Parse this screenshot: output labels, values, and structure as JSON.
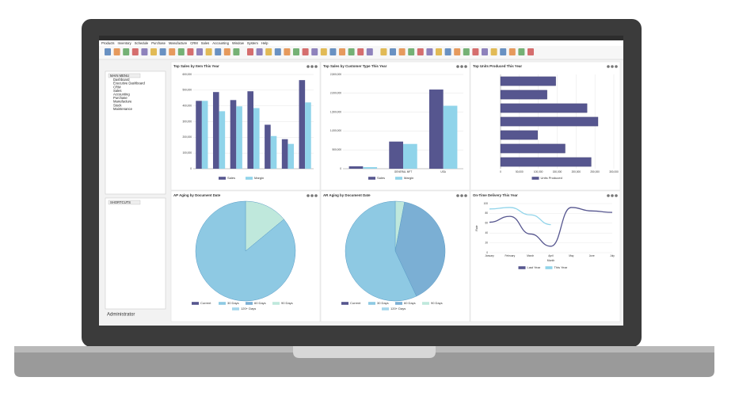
{
  "menu_bar": [
    "Products",
    "Inventory",
    "Schedule",
    "Purchase",
    "Manufacture",
    "CRM",
    "Sales",
    "Accounting",
    "Window",
    "System",
    "Help"
  ],
  "sidebar": {
    "main_menu_title": "MAIN MENU",
    "main_menu": [
      "Dashboard",
      "Executive Dashboard",
      "CRM",
      "Sales",
      "Accounting",
      "Purchase",
      "Manufacture",
      "Stock",
      "Maintenance"
    ],
    "shortcuts_title": "SHORTCUTS",
    "user": "Administrator"
  },
  "chart_data": [
    {
      "type": "bar",
      "title": "Top Sales by Item This Year",
      "categories": [
        null,
        null,
        null,
        null,
        null,
        null,
        null
      ],
      "series": [
        {
          "name": "Sales",
          "color": "#56568f",
          "values": [
            432000,
            488000,
            437000,
            493000,
            280000,
            188000,
            564000
          ]
        },
        {
          "name": "Margin",
          "color": "#90d4ea",
          "values": [
            432000,
            366000,
            397000,
            386000,
            208000,
            158000,
            422000
          ]
        }
      ],
      "ylim": [
        0,
        600000
      ],
      "yticks": [
        0,
        {
          "value": 100000,
          "label": "100,000"
        },
        {
          "value": 200000,
          "label": "200,000"
        },
        {
          "value": 300000,
          "label": "300,000"
        },
        {
          "value": 400000,
          "label": "400,000"
        },
        {
          "value": 500000,
          "label": "500,000"
        },
        {
          "value": 600000,
          "label": "600,000"
        }
      ],
      "grid": true
    },
    {
      "type": "bar",
      "title": "Top Sales by Customer Type This Year",
      "categories": [
        null,
        "GENERAL MFT",
        "USA"
      ],
      "series": [
        {
          "name": "Sales",
          "color": "#56568f",
          "values": [
            64000,
            720000,
            2100000
          ]
        },
        {
          "name": "Margin",
          "color": "#90d4ea",
          "values": [
            42000,
            657000,
            1670000
          ]
        }
      ],
      "ylim": [
        0,
        2500000
      ],
      "yticks": [
        0,
        {
          "value": 500000,
          "label": "500,000"
        },
        {
          "value": 1000000,
          "label": "1,000,000"
        },
        {
          "value": 1500000,
          "label": "1,500,000"
        },
        {
          "value": 2000000,
          "label": "2,000,000"
        },
        {
          "value": 2500000,
          "label": "2,500,000"
        }
      ],
      "grid": true
    },
    {
      "type": "hbar",
      "title": "Top Units Produced This Year",
      "categories": [
        null,
        null,
        null,
        null,
        null,
        null,
        null
      ],
      "series": [
        {
          "name": "Units Produced",
          "color": "#56568f",
          "values": [
            146000,
            123000,
            229000,
            258000,
            98000,
            171000,
            240000
          ]
        }
      ],
      "xlim": [
        0,
        300000
      ],
      "xticks": [
        0,
        {
          "value": 50000,
          "label": "50,000"
        },
        {
          "value": 100000,
          "label": "100,000"
        },
        {
          "value": 150000,
          "label": "150,000"
        },
        {
          "value": 200000,
          "label": "200,000"
        },
        {
          "value": 250000,
          "label": "250,000"
        },
        {
          "value": 300000,
          "label": "300,000"
        }
      ],
      "grid": true
    },
    {
      "type": "pie",
      "title": "AP Aging by Document Date",
      "categories": [
        "Current",
        "30 Days",
        "60 Days",
        "90 Days",
        "120+ Days"
      ],
      "colors": [
        "#56568f",
        "#8ec9e3",
        "#7bafd4",
        "#bfe8dc",
        "#a6d7ec"
      ],
      "values": [
        0,
        86,
        0,
        14,
        0
      ]
    },
    {
      "type": "pie",
      "title": "AR Aging by Document Date",
      "categories": [
        "Current",
        "30 Days",
        "60 Days",
        "90 Days",
        "120+ Days"
      ],
      "colors": [
        "#56568f",
        "#8ec9e3",
        "#7bafd4",
        "#bfe8dc",
        "#a6d7ec"
      ],
      "values": [
        0,
        57,
        40,
        3,
        0
      ]
    },
    {
      "type": "line",
      "title": "On-Time Delivery This Year",
      "x_label": "Month",
      "y_label": "Rate",
      "categories": [
        "January",
        "February",
        "March",
        "April",
        "May",
        "June",
        "July"
      ],
      "series": [
        {
          "name": "Last Year",
          "color": "#56568f",
          "values": [
            62,
            74,
            38,
            13,
            92,
            85,
            82
          ]
        },
        {
          "name": "This Year",
          "color": "#90d4ea",
          "values": [
            89,
            92,
            77,
            57,
            null,
            null,
            null
          ]
        }
      ],
      "ylim": [
        0,
        100
      ],
      "yticks": [
        0,
        20,
        40,
        60,
        80,
        100
      ],
      "grid": true
    }
  ]
}
